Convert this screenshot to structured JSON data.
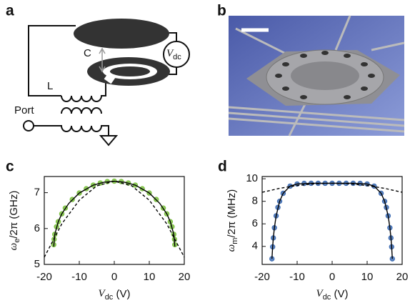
{
  "panels": {
    "a": {
      "letter": "a",
      "capacitor": "C",
      "inductor": "L",
      "port": "Port",
      "source": {
        "main": "V",
        "sub": "dc"
      }
    },
    "b": {
      "letter": "b"
    }
  },
  "chart_data": [
    {
      "type": "line",
      "panel": "c",
      "xlabel": {
        "main": "V",
        "sub": "dc",
        "rest": " (V)"
      },
      "ylabel": {
        "main": "ω",
        "sub": "e",
        "rest": "/2π (GHz)"
      },
      "xlim": [
        -20,
        20
      ],
      "xticks": [
        -20,
        -10,
        0,
        10,
        20
      ],
      "ylim": [
        5,
        7.45
      ],
      "yticks": [
        5,
        6,
        7
      ],
      "series": [
        {
          "type": "scatter",
          "color": "#7dc142",
          "x": [
            -17.3,
            -17.2,
            -17,
            -16.5,
            -16,
            -15,
            -14,
            -12,
            -10,
            -8,
            -6,
            -4,
            -2,
            0,
            2,
            4,
            6,
            8,
            10,
            12,
            14,
            15,
            16,
            16.5,
            17,
            17.2,
            17.3
          ],
          "values": [
            5.55,
            5.7,
            5.84,
            6.05,
            6.19,
            6.41,
            6.57,
            6.81,
            6.99,
            7.11,
            7.21,
            7.27,
            7.31,
            7.32,
            7.31,
            7.27,
            7.21,
            7.11,
            6.99,
            6.81,
            6.57,
            6.41,
            6.19,
            6.05,
            5.84,
            5.7,
            5.55
          ]
        },
        {
          "type": "line",
          "color": "#000000",
          "style": "solid",
          "x": [
            -17.3,
            -17,
            -16,
            -15,
            -13,
            -10,
            -6,
            -3,
            0,
            3,
            6,
            10,
            13,
            15,
            16,
            17,
            17.3
          ],
          "values": [
            5.5,
            5.84,
            6.19,
            6.41,
            6.7,
            6.99,
            7.21,
            7.29,
            7.32,
            7.29,
            7.21,
            6.99,
            6.7,
            6.41,
            6.19,
            5.84,
            5.5
          ]
        },
        {
          "type": "line",
          "color": "#000000",
          "style": "dashed",
          "x": [
            -20,
            -15,
            -10,
            -5,
            0,
            5,
            10,
            15,
            20
          ],
          "values": [
            5.2,
            6.13,
            6.79,
            7.19,
            7.32,
            7.19,
            6.79,
            6.13,
            5.2
          ]
        }
      ]
    },
    {
      "type": "line",
      "panel": "d",
      "xlabel": {
        "main": "V",
        "sub": "dc",
        "rest": " (V)"
      },
      "ylabel": {
        "main": "ω",
        "sub": "m",
        "rest": "/2π (MHz)"
      },
      "xlim": [
        -20,
        20
      ],
      "xticks": [
        -20,
        -10,
        0,
        10,
        20
      ],
      "ylim": [
        2.4,
        10.2
      ],
      "yticks": [
        4,
        6,
        8,
        10
      ],
      "series": [
        {
          "type": "scatter",
          "color": "#3f6db3",
          "x": [
            -17.2,
            -17,
            -16.8,
            -16.5,
            -16,
            -15.5,
            -15,
            -14,
            -12,
            -10,
            -8,
            -6,
            -4,
            -2,
            0,
            2,
            4,
            6,
            8,
            10,
            12,
            14,
            15,
            15.5,
            16,
            16.5,
            16.8,
            17,
            17.2
          ],
          "values": [
            2.9,
            3.96,
            4.75,
            5.65,
            6.71,
            7.46,
            8.0,
            8.71,
            9.35,
            9.54,
            9.59,
            9.6,
            9.6,
            9.6,
            9.6,
            9.6,
            9.6,
            9.6,
            9.59,
            9.54,
            9.35,
            8.71,
            8.0,
            7.46,
            6.71,
            5.65,
            4.75,
            3.96,
            2.9
          ]
        },
        {
          "type": "line",
          "color": "#000000",
          "style": "solid",
          "x": [
            -17.2,
            -17,
            -16.8,
            -16.5,
            -16,
            -15,
            -14,
            -12,
            -10,
            -6,
            0,
            6,
            10,
            12,
            14,
            15,
            16,
            16.5,
            16.8,
            17,
            17.2
          ],
          "values": [
            2.9,
            3.96,
            4.75,
            5.65,
            6.71,
            8.0,
            8.71,
            9.35,
            9.54,
            9.6,
            9.6,
            9.6,
            9.54,
            9.35,
            8.71,
            8.0,
            6.71,
            5.65,
            4.75,
            3.96,
            2.9
          ]
        },
        {
          "type": "line",
          "color": "#000000",
          "style": "dashed",
          "x": [
            -20,
            -15,
            -10,
            -5,
            0,
            5,
            10,
            15,
            20
          ],
          "values": [
            8.8,
            9.15,
            9.4,
            9.55,
            9.6,
            9.55,
            9.4,
            9.15,
            8.8
          ]
        }
      ]
    }
  ]
}
